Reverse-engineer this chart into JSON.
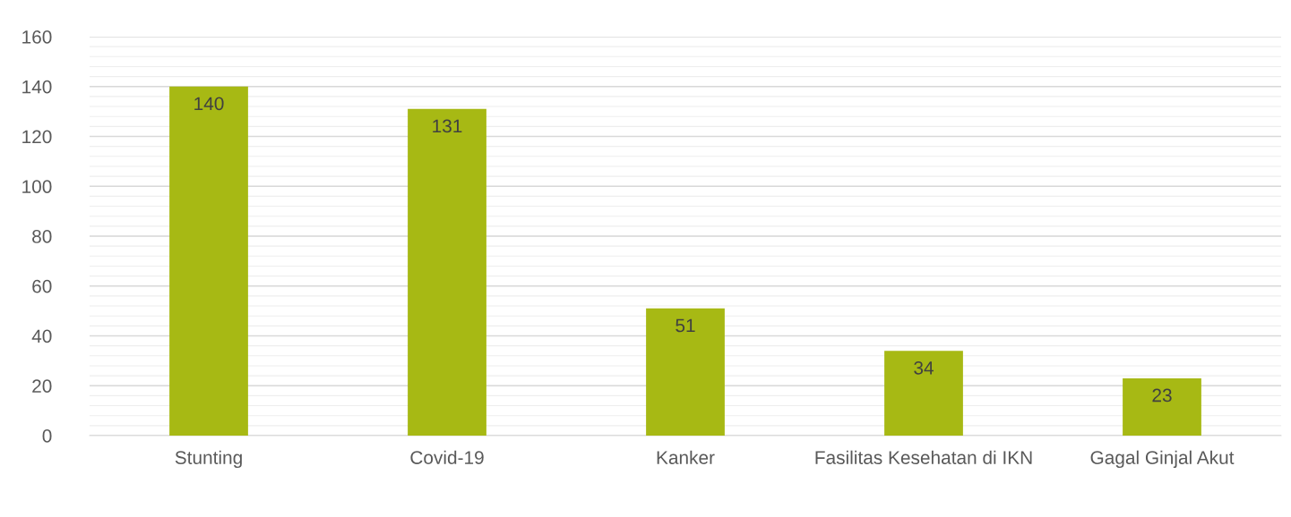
{
  "chart_data": {
    "type": "bar",
    "categories": [
      "Stunting",
      "Covid-19",
      "Kanker",
      "Fasilitas Kesehatan di IKN",
      "Gagal Ginjal Akut"
    ],
    "values": [
      140,
      131,
      51,
      34,
      23
    ],
    "color": "#a7b914",
    "ylim": [
      0,
      160
    ],
    "yticks": [
      0,
      20,
      40,
      60,
      80,
      100,
      120,
      140,
      160
    ],
    "grid": "y",
    "data_labels": true
  }
}
